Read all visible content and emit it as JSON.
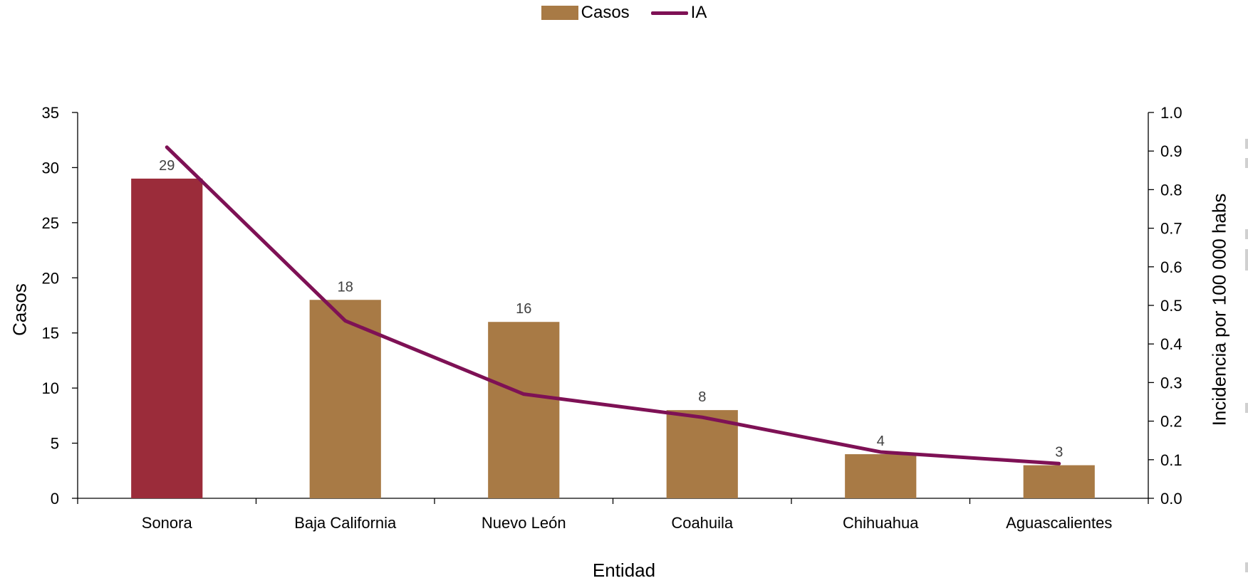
{
  "chart_data": {
    "type": "bar",
    "categories": [
      "Sonora",
      "Baja California",
      "Nuevo León",
      "Coahuila",
      "Chihuahua",
      "Aguascalientes"
    ],
    "series": [
      {
        "name": "Casos",
        "type": "bar",
        "axis": "left",
        "values": [
          29,
          18,
          16,
          8,
          4,
          3
        ],
        "data_labels": [
          "29",
          "18",
          "16",
          "8",
          "4",
          "3"
        ],
        "color": "#A87A45",
        "highlight": {
          "index": 0,
          "color": "#9B2C3A"
        }
      },
      {
        "name": "IA",
        "type": "line",
        "axis": "right",
        "values": [
          0.91,
          0.46,
          0.27,
          0.21,
          0.12,
          0.09
        ],
        "color": "#7E1155"
      }
    ],
    "xlabel": "Entidad",
    "ylabel": "Casos",
    "y2label": "Incidencia por 100 000 habs",
    "ylim": [
      0,
      35
    ],
    "y_ticks": [
      "0",
      "5",
      "10",
      "15",
      "20",
      "25",
      "30",
      "35"
    ],
    "y2lim": [
      0,
      1.0
    ],
    "y2_ticks": [
      "0.0",
      "0.1",
      "0.2",
      "0.3",
      "0.4",
      "0.5",
      "0.6",
      "0.7",
      "0.8",
      "0.9",
      "1.0"
    ],
    "grid": false,
    "legend_position": "top-center",
    "legend": [
      {
        "label": "Casos",
        "kind": "bar",
        "color": "#A87A45"
      },
      {
        "label": "IA",
        "kind": "line",
        "color": "#7E1155"
      }
    ]
  }
}
